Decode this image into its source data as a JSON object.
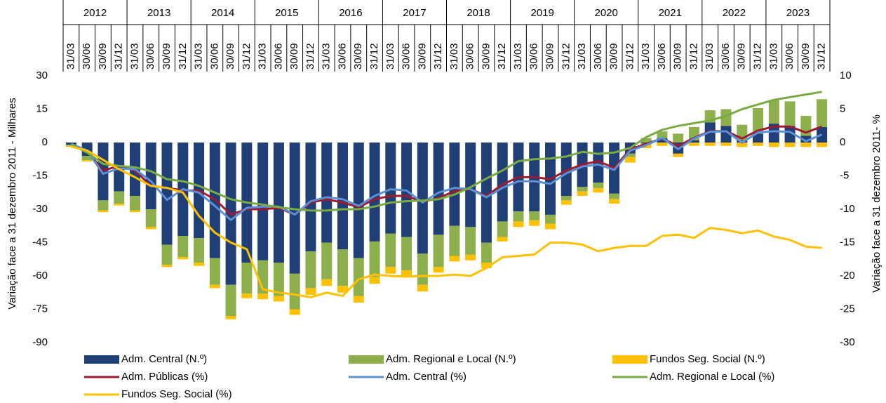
{
  "chart_data": {
    "type": "combo",
    "y_label": "Variação  face a 31 dezembro 2011  - Milhares",
    "y2_label": "Variação face a 31 dezembro 2011- %",
    "years": [
      "2012",
      "2013",
      "2014",
      "2015",
      "2016",
      "2017",
      "2018",
      "2019",
      "2020",
      "2021",
      "2022",
      "2023"
    ],
    "categories": [
      "31/03",
      "30/06",
      "30/09",
      "31/12",
      "31/03",
      "30/06",
      "30/09",
      "31/12",
      "31/03",
      "30/06",
      "30/09",
      "31/12",
      "31/03",
      "30/06",
      "30/09",
      "31/12",
      "31/03",
      "30/06",
      "30/09",
      "31/12",
      "31/03",
      "30/06",
      "30/09",
      "31/12",
      "31/03",
      "30/06",
      "30/09",
      "31/12",
      "31/03",
      "30/06",
      "30/09",
      "31/12",
      "31/03",
      "30/06",
      "30/09",
      "31/12",
      "31/03",
      "30/06",
      "30/09",
      "31/12",
      "31/03",
      "30/06",
      "30/09",
      "31/12",
      "31/03",
      "30/06",
      "30/09",
      "31/12"
    ],
    "ylim": [
      -90,
      30
    ],
    "yticks": [
      30,
      15,
      0,
      -15,
      -30,
      -45,
      -60,
      -75,
      -90
    ],
    "y2lim": [
      -30,
      10
    ],
    "y2ticks": [
      10,
      5,
      0,
      -5,
      -10,
      -15,
      -20,
      -25,
      -30
    ],
    "legend": "bottom",
    "series": [
      {
        "name": "Adm. Central (N.º)",
        "type": "bar",
        "color": "#1f3f76",
        "values": [
          -1,
          -6,
          -26,
          -22,
          -24,
          -30,
          -46,
          -42,
          -43,
          -52,
          -64,
          -54,
          -53,
          -54,
          -59,
          -49,
          -45,
          -48,
          -52,
          -44.5,
          -41,
          -42.5,
          -50,
          -41.5,
          -37.5,
          -38,
          -45,
          -35.5,
          -31,
          -31,
          -32.5,
          -24,
          -20,
          -18,
          -23,
          -5,
          -0.5,
          2,
          -5,
          1,
          9,
          7.5,
          1,
          4,
          8.5,
          7.5,
          3,
          7
        ]
      },
      {
        "name": "Adm. Regional e Local (N.º)",
        "type": "bar",
        "color": "#8db04c",
        "values": [
          -0.5,
          -2,
          -4.5,
          -5.5,
          -6.5,
          -8,
          -9,
          -9.5,
          -11,
          -12,
          -14,
          -14,
          -15,
          -15,
          -16,
          -16.5,
          -16.5,
          -16.5,
          -17,
          -16,
          -15,
          -15,
          -14,
          -14.5,
          -13.5,
          -12.5,
          -9,
          -7,
          -4.5,
          -4,
          -4,
          -2,
          -2,
          -2.5,
          -2.5,
          -1.5,
          2,
          3,
          4,
          6,
          5.5,
          7.5,
          7,
          11.5,
          10.5,
          11,
          9,
          12.5
        ]
      },
      {
        "name": "Fundos Seg. Social (N.º)",
        "type": "bar",
        "color": "#ffc000",
        "values": [
          -0.5,
          -0.5,
          -0.8,
          -0.8,
          -0.8,
          -1,
          -1,
          -1,
          -1.5,
          -1.5,
          -1.5,
          -2,
          -2.5,
          -2.5,
          -2.5,
          -3,
          -3,
          -3,
          -3,
          -3,
          -3,
          -3,
          -3,
          -2.5,
          -2.5,
          -2.5,
          -2.5,
          -2,
          -2.5,
          -2.5,
          -2.5,
          -2,
          -2,
          -2,
          -2,
          -2.5,
          -2,
          -1.5,
          -1.5,
          -1.5,
          -1.5,
          -1.5,
          -2,
          -1.5,
          -2,
          -2,
          -2,
          -2
        ]
      },
      {
        "name": "Adm. Públicas (%)",
        "type": "line",
        "axis": "y2",
        "color": "#9e1b2f",
        "values": [
          -0.3,
          -1.3,
          -4.2,
          -3.5,
          -4.2,
          -6.5,
          -6.8,
          -7.2,
          -7.2,
          -8.5,
          -10.8,
          -10,
          -10,
          -9.8,
          -10.8,
          -9,
          -8.5,
          -9,
          -9.7,
          -8.5,
          -8,
          -8,
          -8.9,
          -8.3,
          -7.3,
          -7,
          -8,
          -6.3,
          -5.2,
          -5.2,
          -5.5,
          -4.2,
          -3.3,
          -2.8,
          -3.8,
          -1,
          -0.2,
          0.6,
          -0.5,
          0.7,
          1.7,
          1.7,
          0.6,
          1.8,
          2.4,
          2.4,
          1.5,
          2.4
        ]
      },
      {
        "name": "Adm. Central (%)",
        "type": "line",
        "axis": "y2",
        "color": "#5b8fd6",
        "values": [
          -0.2,
          -1.2,
          -4.7,
          -3.9,
          -4,
          -5.8,
          -8.6,
          -7,
          -7.5,
          -9.5,
          -11.6,
          -9.8,
          -9.6,
          -9.6,
          -10.8,
          -8.8,
          -8.2,
          -8.5,
          -9.5,
          -8,
          -7,
          -7.2,
          -9,
          -7.5,
          -6.8,
          -7,
          -8.2,
          -6.8,
          -5.8,
          -5.8,
          -6.2,
          -4.6,
          -3.6,
          -3.3,
          -4.1,
          -1.2,
          -0.4,
          0.7,
          -1,
          0.6,
          1.6,
          1.7,
          0,
          1.5,
          1.7,
          1.6,
          0.2,
          1.2
        ]
      },
      {
        "name": "Adm. Regional e Local (%)",
        "type": "line",
        "axis": "y2",
        "color": "#7aab43",
        "values": [
          -0.3,
          -1.5,
          -3.2,
          -3.5,
          -3.7,
          -4.3,
          -5.5,
          -5.8,
          -6.5,
          -7.5,
          -8.5,
          -9,
          -9.3,
          -9.7,
          -10,
          -10.2,
          -10.2,
          -10,
          -10,
          -9.6,
          -9,
          -8.8,
          -8.7,
          -8.5,
          -7.8,
          -6.7,
          -5.4,
          -4.2,
          -2.8,
          -2.5,
          -2.4,
          -2.1,
          -1.4,
          -1.7,
          -1.5,
          -0.8,
          0.8,
          1.9,
          2.5,
          2.9,
          3.3,
          4,
          5,
          5.7,
          6.4,
          6.8,
          7.2,
          7.6
        ]
      },
      {
        "name": "Fundos Seg. Social (%)",
        "type": "line",
        "axis": "y2",
        "color": "#ffc000",
        "values": [
          -0.6,
          -1.2,
          -2.6,
          -4,
          -5.2,
          -6.5,
          -6.8,
          -7.5,
          -11,
          -13.5,
          -15,
          -16,
          -22,
          -22.5,
          -22.8,
          -23.2,
          -22.5,
          -23,
          -20.5,
          -19.8,
          -20,
          -20.1,
          -20,
          -20,
          -19.8,
          -20,
          -18.8,
          -17.2,
          -17,
          -16.8,
          -15,
          -15,
          -15.3,
          -16.3,
          -15.8,
          -15.5,
          -15.5,
          -14,
          -13.8,
          -14.3,
          -12.8,
          -13.1,
          -13.6,
          -13.2,
          -14.1,
          -14.6,
          -15.6,
          -15.8
        ]
      }
    ]
  }
}
